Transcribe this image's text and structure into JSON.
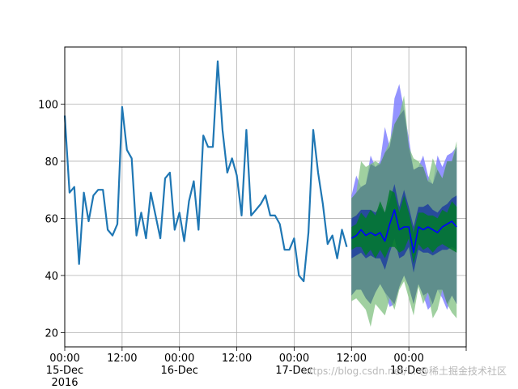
{
  "watermark": "https://blog.csdn.net/... @稀土掘金技术社区",
  "chart_data": {
    "type": "line",
    "title": "",
    "xlabel": "",
    "ylabel": "",
    "xlim": [
      "2016-12-15T00:00",
      "2016-12-18T12:00"
    ],
    "ylim": [
      15,
      120
    ],
    "grid": true,
    "x_ticks": [
      {
        "at": "2016-12-15T00:00",
        "label": "00:00\n15-Dec\n2016"
      },
      {
        "at": "2016-12-15T12:00",
        "label": "12:00"
      },
      {
        "at": "2016-12-16T00:00",
        "label": "00:00\n16-Dec"
      },
      {
        "at": "2016-12-16T12:00",
        "label": "12:00"
      },
      {
        "at": "2016-12-17T00:00",
        "label": "00:00\n17-Dec"
      },
      {
        "at": "2016-12-17T12:00",
        "label": "12:00"
      },
      {
        "at": "2016-12-18T00:00",
        "label": "00:00\n18-Dec"
      }
    ],
    "y_ticks": [
      20,
      40,
      60,
      80,
      100
    ],
    "colors": {
      "observed": "#1f77b4",
      "forecast": "#0000ff",
      "band_outer_a": "#8080ff",
      "band_outer_b": "#80c080",
      "band_inner_a": "#1f3f9f",
      "band_inner_b": "#007a2a",
      "overlap": "#5b8a8a"
    },
    "series": [
      {
        "role": "observed",
        "x_start": "2016-12-15T00:00",
        "x_step_hours": 1,
        "values": [
          96,
          69,
          71,
          44,
          69,
          59,
          68,
          70,
          70,
          56,
          54,
          58,
          99,
          84,
          81,
          54,
          62,
          53,
          69,
          61,
          53,
          74,
          76,
          56,
          62,
          52,
          66,
          73,
          56,
          89,
          85,
          85,
          115,
          91,
          76,
          81,
          75,
          61,
          91,
          61,
          63,
          65,
          68,
          61,
          61,
          58,
          49,
          49,
          53,
          40,
          38,
          55,
          91,
          76,
          65,
          51,
          54,
          46,
          56,
          50
        ]
      },
      {
        "role": "forecast",
        "x_start": "2016-12-17T12:00",
        "x_step_hours": 1,
        "values": [
          53,
          54,
          56,
          54,
          55,
          54,
          55,
          52,
          58,
          63,
          56,
          57,
          57,
          48,
          57,
          56,
          57,
          56,
          55,
          57,
          58,
          59,
          57
        ]
      },
      {
        "role": "band_outer_a",
        "x_start": "2016-12-17T12:00",
        "x_step_hours": 1,
        "upper": [
          68,
          75,
          71,
          72,
          82,
          78,
          80,
          92,
          85,
          102,
          107,
          98,
          88,
          77,
          78,
          82,
          75,
          72,
          82,
          78,
          82,
          83,
          85
        ],
        "lower": [
          33,
          35,
          35,
          32,
          30,
          34,
          37,
          34,
          29,
          30,
          36,
          40,
          36,
          30,
          37,
          33,
          28,
          30,
          35,
          32,
          28,
          33,
          30
        ]
      },
      {
        "role": "band_outer_b",
        "x_start": "2016-12-17T12:00",
        "x_step_hours": 1,
        "upper": [
          67,
          69,
          80,
          78,
          79,
          80,
          79,
          83,
          87,
          93,
          96,
          103,
          85,
          81,
          80,
          78,
          73,
          81,
          77,
          74,
          80,
          80,
          87
        ],
        "lower": [
          31,
          32,
          30,
          28,
          22,
          30,
          28,
          26,
          32,
          28,
          35,
          38,
          32,
          26,
          36,
          30,
          34,
          25,
          28,
          35,
          30,
          27,
          25
        ]
      },
      {
        "role": "band_inner_a",
        "x_start": "2016-12-17T12:00",
        "x_step_hours": 1,
        "upper": [
          60,
          61,
          63,
          63,
          63,
          62,
          64,
          62,
          66,
          72,
          64,
          70,
          64,
          57,
          64,
          64,
          65,
          63,
          62,
          64,
          65,
          67,
          68
        ],
        "lower": [
          46,
          47,
          48,
          46,
          47,
          46,
          46,
          42,
          48,
          53,
          46,
          47,
          50,
          41,
          49,
          48,
          48,
          47,
          48,
          49,
          49,
          50,
          49
        ]
      },
      {
        "role": "band_inner_b",
        "x_start": "2016-12-17T12:00",
        "x_step_hours": 1,
        "upper": [
          57,
          58,
          62,
          60,
          63,
          61,
          66,
          62,
          70,
          69,
          62,
          68,
          62,
          55,
          62,
          62,
          61,
          61,
          60,
          63,
          62,
          66,
          64
        ],
        "lower": [
          49,
          50,
          50,
          47,
          49,
          46,
          49,
          46,
          50,
          50,
          48,
          49,
          53,
          44,
          51,
          49,
          50,
          48,
          50,
          51,
          50,
          49,
          48
        ]
      }
    ]
  }
}
